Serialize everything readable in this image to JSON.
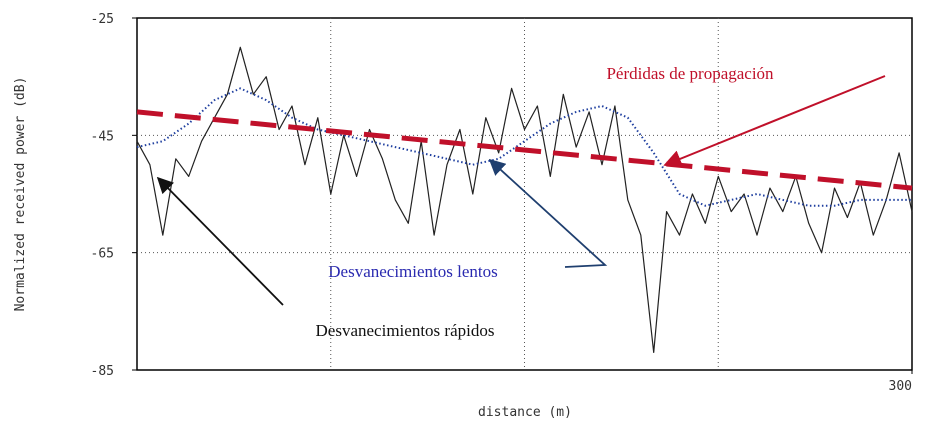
{
  "chart_data": {
    "type": "line",
    "xlabel": "distance (m)",
    "ylabel": "Normalized received power (dB)",
    "xlim": [
      0,
      300
    ],
    "xticks": [
      300
    ],
    "xgrid": [
      75,
      150,
      225
    ],
    "ylim": [
      -85,
      -25
    ],
    "yticks": [
      -85,
      -65,
      -45,
      -25
    ],
    "ygrid": [
      -65,
      -45
    ],
    "series": [
      {
        "name": "Desvanecimientos rápidos",
        "color": "#222222",
        "style": "solid",
        "x": [
          0,
          5,
          10,
          15,
          20,
          25,
          30,
          35,
          40,
          45,
          50,
          55,
          60,
          65,
          70,
          75,
          80,
          85,
          90,
          95,
          100,
          105,
          110,
          115,
          120,
          125,
          130,
          135,
          140,
          145,
          150,
          155,
          160,
          165,
          170,
          175,
          180,
          185,
          190,
          195,
          200,
          205,
          210,
          215,
          220,
          225,
          230,
          235,
          240,
          245,
          250,
          255,
          260,
          265,
          270,
          275,
          280,
          285,
          290,
          295,
          300
        ],
        "values": [
          -46,
          -50,
          -62,
          -49,
          -52,
          -46,
          -42,
          -38,
          -30,
          -38,
          -35,
          -44,
          -40,
          -50,
          -42,
          -55,
          -45,
          -52,
          -44,
          -49,
          -56,
          -60,
          -46,
          -62,
          -50,
          -44,
          -55,
          -42,
          -48,
          -37,
          -44,
          -40,
          -52,
          -38,
          -47,
          -41,
          -50,
          -40,
          -56,
          -62,
          -82,
          -58,
          -62,
          -55,
          -60,
          -52,
          -58,
          -55,
          -62,
          -54,
          -58,
          -52,
          -60,
          -65,
          -54,
          -59,
          -53,
          -62,
          -56,
          -48,
          -58
        ]
      },
      {
        "name": "Desvanecimientos lentos",
        "color": "#1f3f9f",
        "style": "dotted",
        "x": [
          0,
          10,
          20,
          30,
          40,
          50,
          60,
          70,
          80,
          90,
          100,
          110,
          120,
          130,
          140,
          150,
          160,
          170,
          180,
          190,
          200,
          210,
          220,
          230,
          240,
          250,
          260,
          270,
          280,
          290,
          300
        ],
        "values": [
          -47,
          -46,
          -43,
          -39,
          -37,
          -39,
          -42,
          -44,
          -45,
          -46,
          -47,
          -48,
          -49,
          -50,
          -49,
          -46,
          -43,
          -41,
          -40,
          -42,
          -48,
          -55,
          -57,
          -56,
          -55,
          -56,
          -57,
          -57,
          -56,
          -56,
          -56
        ]
      },
      {
        "name": "Pérdidas de propagación",
        "color": "#c0102a",
        "style": "dashed",
        "x": [
          0,
          300
        ],
        "values": [
          -41,
          -54
        ]
      }
    ],
    "annotations": [
      {
        "text": "Pérdidas de propagación",
        "color": "#c0102a"
      },
      {
        "text": "Desvanecimientos lentos",
        "color": "#2a2ab0"
      },
      {
        "text": "Desvanecimientos rápidos",
        "color": "#111111"
      }
    ]
  }
}
